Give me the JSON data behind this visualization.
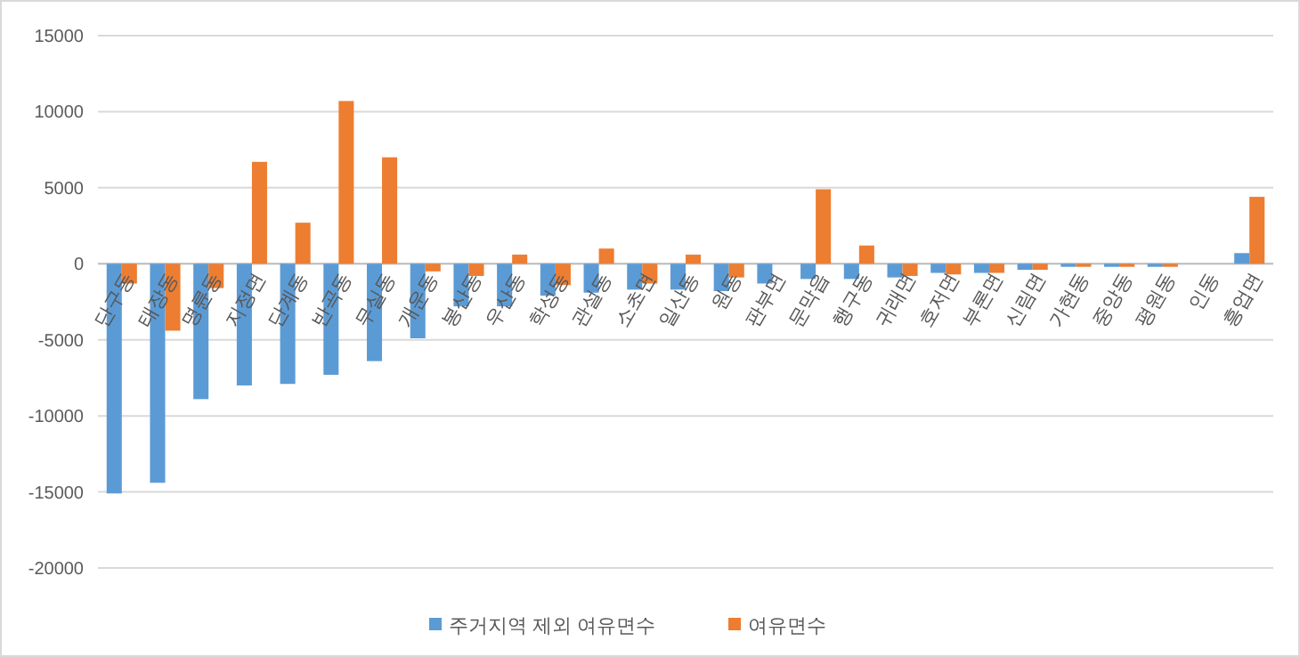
{
  "chart_data": {
    "type": "bar",
    "categories": [
      "단구동",
      "태장동",
      "명륜동",
      "지정면",
      "단계동",
      "반곡동",
      "무실동",
      "개운동",
      "봉산동",
      "우산동",
      "학성동",
      "관설동",
      "소초면",
      "일산동",
      "원동",
      "판부면",
      "문막읍",
      "행구동",
      "귀래면",
      "호저면",
      "부론면",
      "신림면",
      "가현동",
      "중앙동",
      "평원동",
      "인동",
      "흥업면"
    ],
    "series": [
      {
        "name": "주거지역 제외 여유면수",
        "color": "#5b9bd5",
        "values": [
          -15100,
          -14400,
          -8900,
          -8000,
          -7900,
          -7300,
          -6400,
          -4900,
          -2800,
          -2800,
          -2100,
          -1900,
          -1700,
          -1700,
          -1800,
          -1300,
          -1000,
          -1000,
          -900,
          -600,
          -600,
          -400,
          -200,
          -200,
          -200,
          0,
          700
        ]
      },
      {
        "name": "여유면수",
        "color": "#ed7d31",
        "values": [
          -1300,
          -4400,
          -1600,
          6700,
          2700,
          10700,
          7000,
          -500,
          -800,
          600,
          -1400,
          1000,
          -1300,
          600,
          -900,
          0,
          4900,
          1200,
          -800,
          -700,
          -600,
          -400,
          -200,
          -200,
          -200,
          0,
          4400
        ]
      }
    ],
    "ylim": [
      -20000,
      15000
    ],
    "yticks": [
      -20000,
      -15000,
      -10000,
      -5000,
      0,
      5000,
      10000,
      15000
    ],
    "grid": "y",
    "legend": "bottom"
  }
}
